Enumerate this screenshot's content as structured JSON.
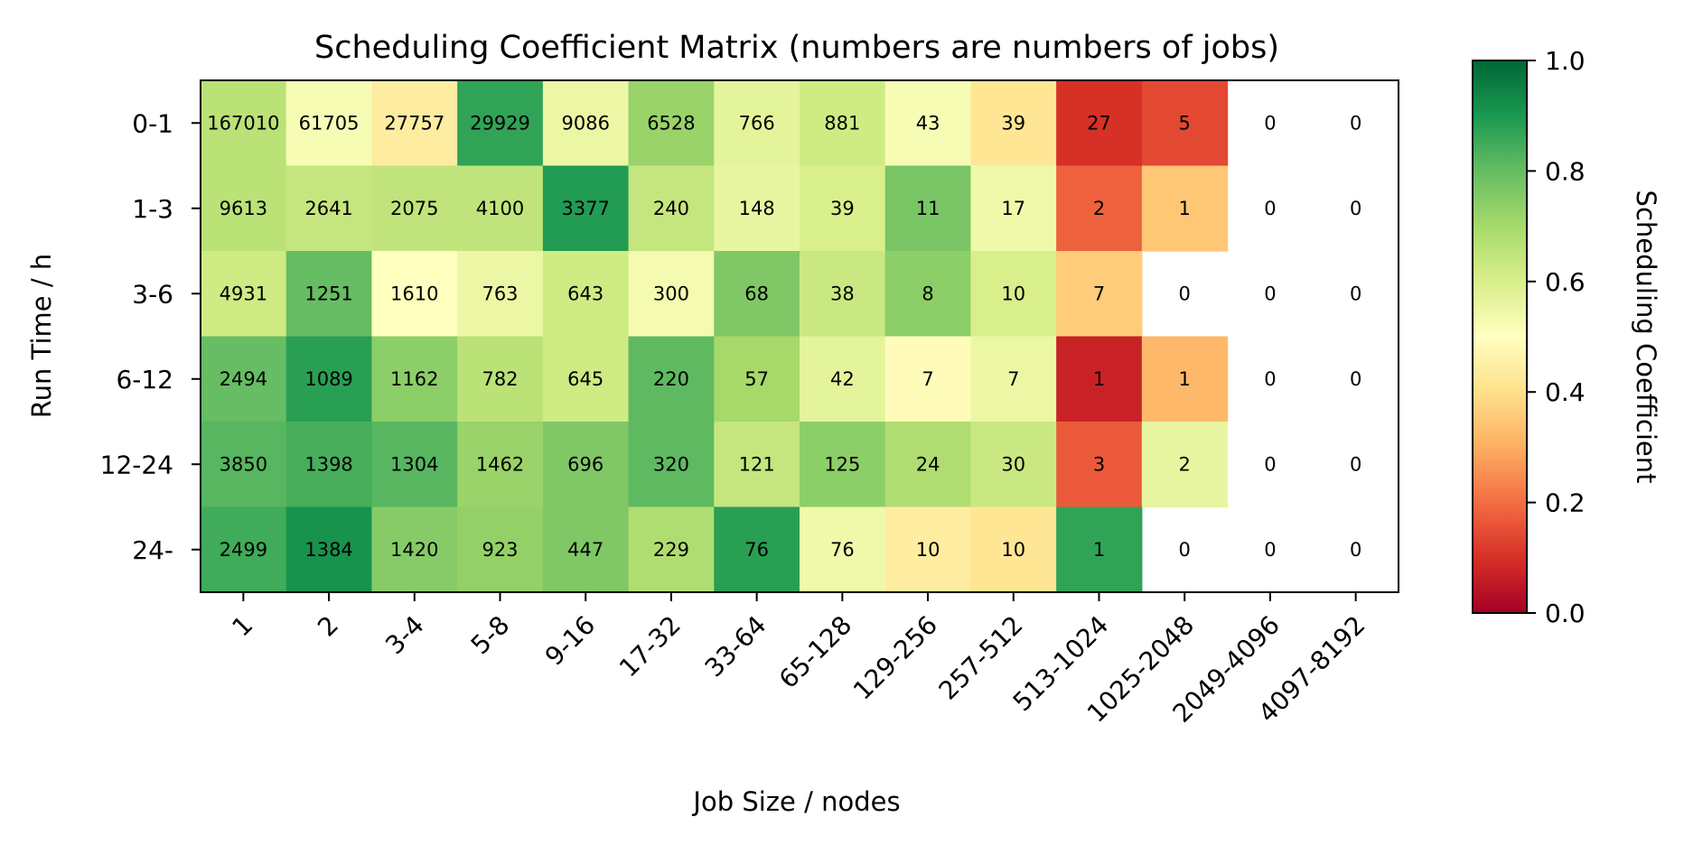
{
  "chart_data": {
    "type": "heatmap",
    "title": "Scheduling Coefficient Matrix (numbers are numbers of jobs)",
    "xlabel": "Job Size / nodes",
    "ylabel": "Run Time / h",
    "x_categories": [
      "1",
      "2",
      "3-4",
      "5-8",
      "9-16",
      "17-32",
      "33-64",
      "65-128",
      "129-256",
      "257-512",
      "513-1024",
      "1025-2048",
      "2049-4096",
      "4097-8192"
    ],
    "y_categories": [
      "0-1",
      "1-3",
      "3-6",
      "6-12",
      "12-24",
      "24-"
    ],
    "job_counts": [
      [
        "167010",
        "61705",
        "27757",
        "29929",
        "9086",
        "6528",
        "766",
        "881",
        "43",
        "39",
        "27",
        "5",
        "0",
        "0"
      ],
      [
        "9613",
        "2641",
        "2075",
        "4100",
        "3377",
        "240",
        "148",
        "39",
        "11",
        "17",
        "2",
        "1",
        "0",
        "0"
      ],
      [
        "4931",
        "1251",
        "1610",
        "763",
        "643",
        "300",
        "68",
        "38",
        "8",
        "10",
        "7",
        "0",
        "0",
        "0"
      ],
      [
        "2494",
        "1089",
        "1162",
        "782",
        "645",
        "220",
        "57",
        "42",
        "7",
        "7",
        "1",
        "1",
        "0",
        "0"
      ],
      [
        "3850",
        "1398",
        "1304",
        "1462",
        "696",
        "320",
        "121",
        "125",
        "24",
        "30",
        "3",
        "2",
        "0",
        "0"
      ],
      [
        "2499",
        "1384",
        "1420",
        "923",
        "447",
        "229",
        "76",
        "76",
        "10",
        "10",
        "1",
        "0",
        "0",
        "0"
      ]
    ],
    "coefficients": [
      [
        0.66,
        0.52,
        0.44,
        0.87,
        0.55,
        0.72,
        0.57,
        0.62,
        0.52,
        0.42,
        0.1,
        0.14,
        null,
        null
      ],
      [
        0.66,
        0.64,
        0.65,
        0.65,
        0.89,
        0.64,
        0.56,
        0.6,
        0.77,
        0.54,
        0.18,
        0.35,
        null,
        null
      ],
      [
        0.62,
        0.8,
        0.5,
        0.55,
        0.62,
        0.53,
        0.76,
        0.63,
        0.74,
        0.6,
        0.36,
        null,
        null,
        null
      ],
      [
        0.8,
        0.88,
        0.74,
        0.66,
        0.62,
        0.81,
        0.7,
        0.57,
        0.49,
        0.55,
        0.07,
        0.32,
        null,
        null
      ],
      [
        0.82,
        0.84,
        0.82,
        0.72,
        0.76,
        0.81,
        0.64,
        0.74,
        0.68,
        0.63,
        0.17,
        0.56,
        null,
        null
      ],
      [
        0.85,
        0.91,
        0.75,
        0.73,
        0.76,
        0.68,
        0.88,
        0.54,
        0.44,
        0.42,
        0.87,
        null,
        null,
        null
      ]
    ],
    "colorbar": {
      "label": "Scheduling Coefficient",
      "range": [
        0.0,
        1.0
      ],
      "ticks": [
        "0.0",
        "0.2",
        "0.4",
        "0.6",
        "0.8",
        "1.0"
      ],
      "colormap": [
        "#a50026",
        "#d73027",
        "#f46d43",
        "#fdae61",
        "#fee08b",
        "#ffffbf",
        "#d9ef8b",
        "#a6d96a",
        "#66bd63",
        "#1a9850",
        "#006837"
      ]
    }
  }
}
